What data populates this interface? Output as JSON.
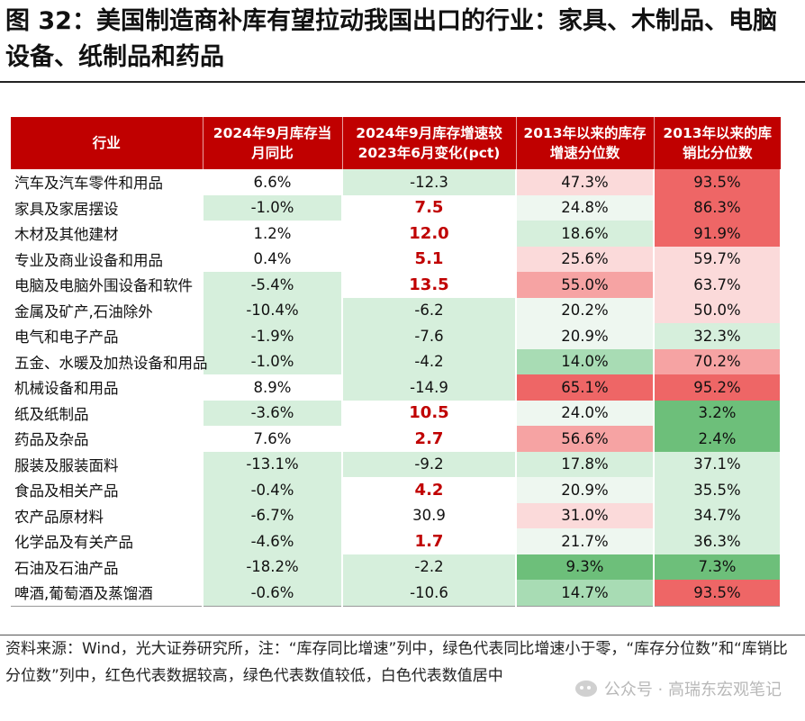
{
  "title": "图 32：美国制造商补库有望拉动我国出口的行业：家具、木制品、电脑设备、纸制品和药品",
  "headers": {
    "industry": "行业",
    "col1": "2024年9月库存当月同比",
    "col2": "2024年9月库存增速较2023年6月变化(pct)",
    "col3": "2013年以来的库存增速分位数",
    "col4": "2013年以来的库销比分位数"
  },
  "colors": {
    "header_bg": "#c00000",
    "positive_text": "#c00000",
    "green_light": "#d6efdc",
    "green_mid": "#a8dcb4",
    "green_strong": "#6dbf7a",
    "red_light": "#fbdada",
    "red_mid": "#f6a3a3",
    "red_strong": "#ee6666"
  },
  "rows": [
    {
      "name": "汽车及汽车零件和用品",
      "yoy": "6.6%",
      "change": "-12.3",
      "inv_pct": "47.3%",
      "ratio_pct": "93.5%"
    },
    {
      "name": "家具及家居摆设",
      "yoy": "-1.0%",
      "change": "7.5",
      "inv_pct": "24.8%",
      "ratio_pct": "86.3%"
    },
    {
      "name": "木材及其他建材",
      "yoy": "1.2%",
      "change": "12.0",
      "inv_pct": "18.6%",
      "ratio_pct": "91.9%"
    },
    {
      "name": "专业及商业设备和用品",
      "yoy": "0.4%",
      "change": "5.1",
      "inv_pct": "25.6%",
      "ratio_pct": "59.7%"
    },
    {
      "name": "电脑及电脑外围设备和软件",
      "yoy": "-5.4%",
      "change": "13.5",
      "inv_pct": "55.0%",
      "ratio_pct": "63.7%"
    },
    {
      "name": "金属及矿产,石油除外",
      "yoy": "-10.4%",
      "change": "-6.2",
      "inv_pct": "20.2%",
      "ratio_pct": "50.0%"
    },
    {
      "name": "电气和电子产品",
      "yoy": "-1.9%",
      "change": "-7.6",
      "inv_pct": "20.9%",
      "ratio_pct": "32.3%"
    },
    {
      "name": "五金、水暖及加热设备和用品",
      "yoy": "-1.0%",
      "change": "-4.2",
      "inv_pct": "14.0%",
      "ratio_pct": "70.2%"
    },
    {
      "name": "机械设备和用品",
      "yoy": "8.9%",
      "change": "-14.9",
      "inv_pct": "65.1%",
      "ratio_pct": "95.2%"
    },
    {
      "name": "纸及纸制品",
      "yoy": "-3.6%",
      "change": "10.5",
      "inv_pct": "24.0%",
      "ratio_pct": "3.2%"
    },
    {
      "name": "药品及杂品",
      "yoy": "7.6%",
      "change": "2.7",
      "inv_pct": "56.6%",
      "ratio_pct": "2.4%"
    },
    {
      "name": "服装及服装面料",
      "yoy": "-13.1%",
      "change": "-9.2",
      "inv_pct": "17.8%",
      "ratio_pct": "37.1%"
    },
    {
      "name": "食品及相关产品",
      "yoy": "-0.4%",
      "change": "4.2",
      "inv_pct": "20.9%",
      "ratio_pct": "35.5%"
    },
    {
      "name": "农产品原材料",
      "yoy": "-6.7%",
      "change": "30.9",
      "inv_pct": "31.0%",
      "ratio_pct": "34.7%"
    },
    {
      "name": "化学品及有关产品",
      "yoy": "-4.6%",
      "change": "1.7",
      "inv_pct": "21.7%",
      "ratio_pct": "36.3%"
    },
    {
      "name": "石油及石油产品",
      "yoy": "-18.2%",
      "change": "-2.2",
      "inv_pct": "9.3%",
      "ratio_pct": "7.3%"
    },
    {
      "name": "啤酒,葡萄酒及蒸馏酒",
      "yoy": "-0.6%",
      "change": "-10.6",
      "inv_pct": "14.7%",
      "ratio_pct": "93.5%"
    }
  ],
  "note": "资料来源：Wind，光大证券研究所，注：“库存同比增速”列中，绿色代表同比增速小于零，“库存分位数”和“库销比分位数”列中，红色代表数据较高，绿色代表数值较低，白色代表数值居中",
  "watermark": "公众号 · 高瑞东宏观笔记"
}
